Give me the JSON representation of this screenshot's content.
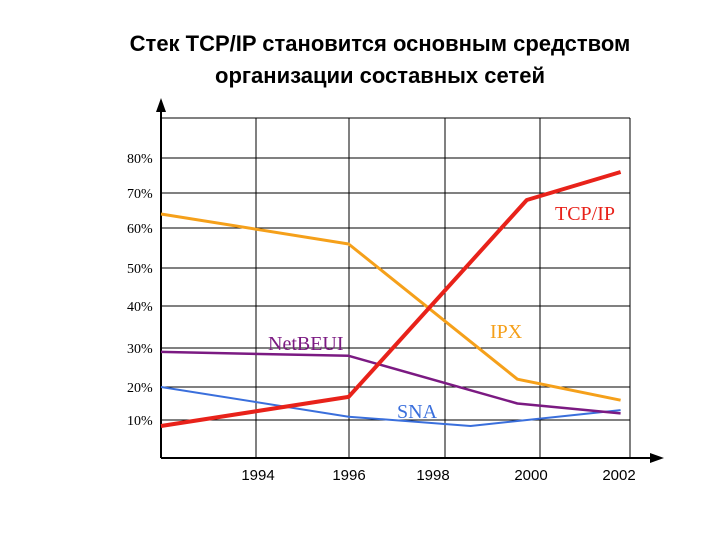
{
  "chart_data": {
    "type": "line",
    "title_line1": "Стек TCP/IP становится основным средством",
    "title_line2": "организации составных сетей",
    "xlabel": "",
    "ylabel": "",
    "x_ticks": [
      "1994",
      "1996",
      "1998",
      "2000",
      "2002"
    ],
    "y_ticks": [
      "10%",
      "20%",
      "30%",
      "40%",
      "50%",
      "60%",
      "70%",
      "80%"
    ],
    "xlim": [
      1992,
      2002
    ],
    "ylim": [
      0,
      90
    ],
    "grid": true,
    "series": [
      {
        "name": "TCP/IP",
        "color": "#e8221a",
        "x": [
          1992,
          1996,
          1999.8,
          2001.8
        ],
        "y": [
          7,
          17,
          68,
          76
        ]
      },
      {
        "name": "IPX",
        "color": "#f5a01a",
        "x": [
          1992,
          1996,
          1999.6,
          2001.8
        ],
        "y": [
          64,
          56,
          22,
          16
        ]
      },
      {
        "name": "NetBEUI",
        "color": "#7b1a82",
        "x": [
          1992,
          1996,
          1999.6,
          2001.8
        ],
        "y": [
          29,
          28,
          15,
          12
        ]
      },
      {
        "name": "SNA",
        "color": "#3a6fdc",
        "x": [
          1992,
          1996,
          1998.6,
          2001.8
        ],
        "y": [
          20,
          11,
          7,
          13
        ]
      }
    ]
  }
}
